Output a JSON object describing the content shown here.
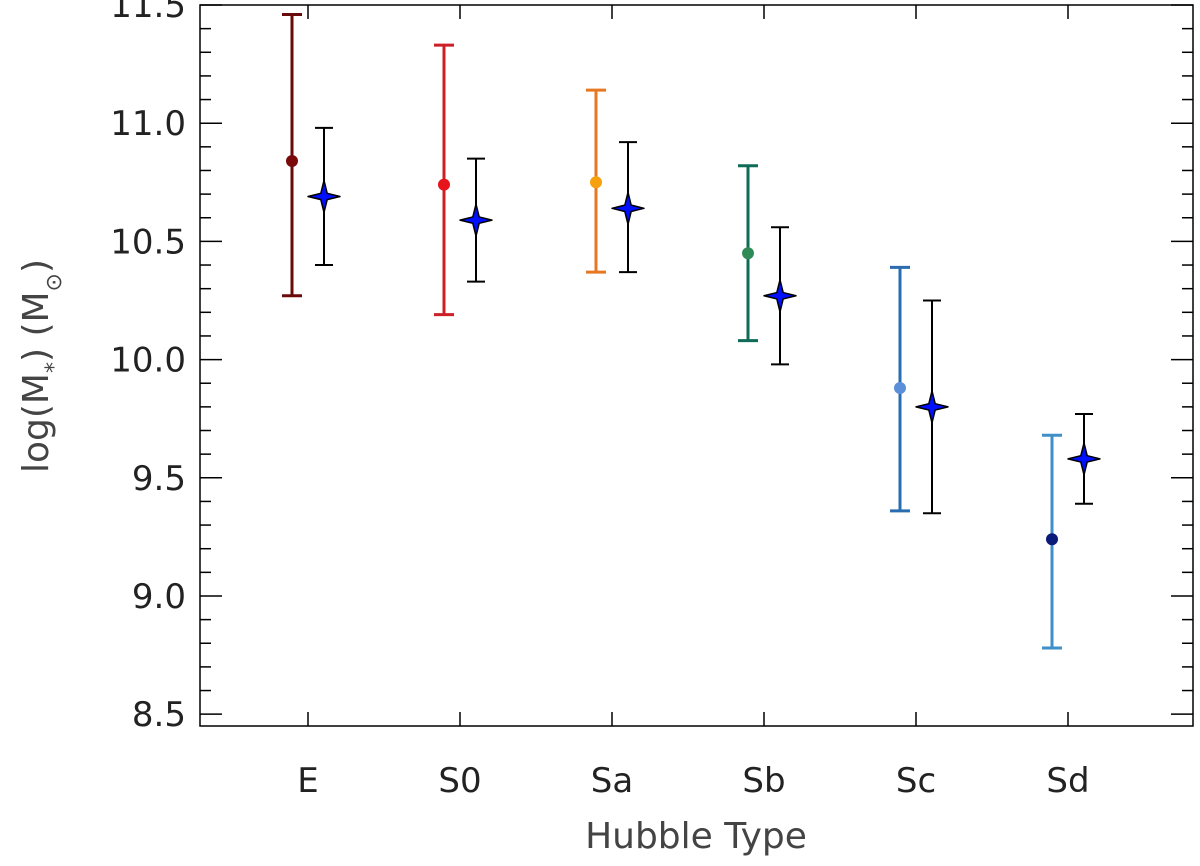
{
  "chart_data": {
    "type": "scatter",
    "title": "",
    "xlabel": "Hubble Type",
    "ylabel_main": "log(M",
    "ylabel_sub": "*",
    "ylabel_tail": ")  (M",
    "ylabel_unit_sub": "⊙",
    "ylabel_close": ")",
    "categories": [
      "E",
      "S0",
      "Sa",
      "Sb",
      "Sc",
      "Sd"
    ],
    "ylim": [
      8.45,
      11.5
    ],
    "yticks": [
      "8.5",
      "9.0",
      "9.5",
      "10.0",
      "10.5",
      "11.0",
      "11.5"
    ],
    "grid": false,
    "legend": "none",
    "series": [
      {
        "marker": "circle",
        "points": [
          {
            "x": "E",
            "y": 10.84,
            "low": 10.27,
            "high": 11.46,
            "color": "#7a0a0a",
            "bar_color": "#6b0a0a"
          },
          {
            "x": "S0",
            "y": 10.74,
            "low": 10.19,
            "high": 11.33,
            "color": "#e8141c",
            "bar_color": "#cc1f26"
          },
          {
            "x": "Sa",
            "y": 10.75,
            "low": 10.37,
            "high": 11.14,
            "color": "#f5a00c",
            "bar_color": "#e87722"
          },
          {
            "x": "Sb",
            "y": 10.45,
            "low": 10.08,
            "high": 10.82,
            "color": "#2e8b57",
            "bar_color": "#0f6b57"
          },
          {
            "x": "Sc",
            "y": 9.88,
            "low": 9.36,
            "high": 10.39,
            "color": "#5b8fd8",
            "bar_color": "#2a6cb0"
          },
          {
            "x": "Sd",
            "y": 9.24,
            "low": 8.78,
            "high": 9.68,
            "color": "#0a1a7a",
            "bar_color": "#3f8fc8"
          }
        ]
      },
      {
        "marker": "star",
        "color": "#0010ff",
        "bar_color": "#000000",
        "points": [
          {
            "x": "E",
            "y": 10.69,
            "low": 10.4,
            "high": 10.98
          },
          {
            "x": "S0",
            "y": 10.59,
            "low": 10.33,
            "high": 10.85
          },
          {
            "x": "Sa",
            "y": 10.64,
            "low": 10.37,
            "high": 10.92
          },
          {
            "x": "Sb",
            "y": 10.27,
            "low": 9.98,
            "high": 10.56
          },
          {
            "x": "Sc",
            "y": 9.8,
            "low": 9.35,
            "high": 10.25
          },
          {
            "x": "Sd",
            "y": 9.58,
            "low": 9.39,
            "high": 9.77
          }
        ]
      }
    ]
  }
}
